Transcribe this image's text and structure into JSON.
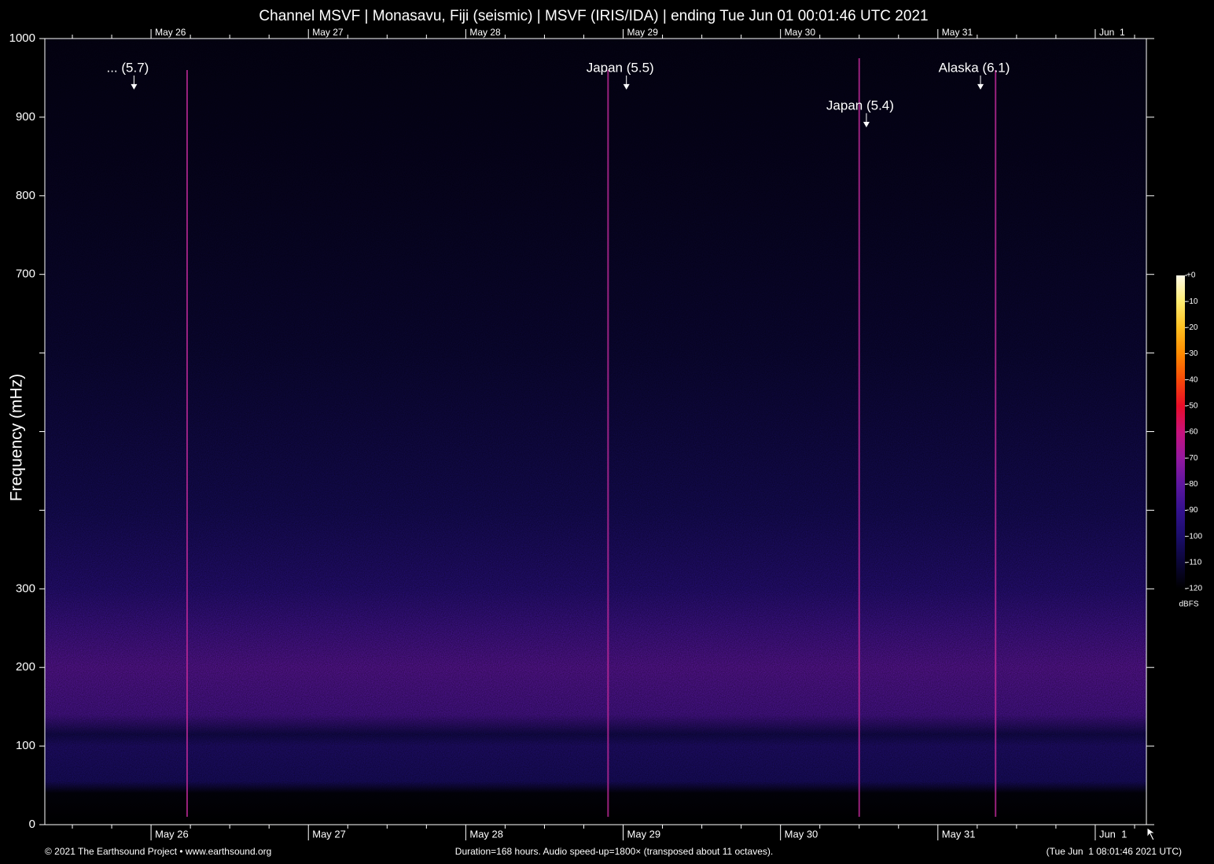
{
  "chart_data": {
    "type": "spectrogram",
    "title": "Channel MSVF | Monasavu, Fiji (seismic) | MSVF (IRIS/IDA) | ending Tue Jun 01 00:01:46 UTC 2021",
    "y_label": "Frequency (mHz)",
    "xlim": [
      0,
      168
    ],
    "xticks": [
      {
        "value": 16.2,
        "label": "May 26"
      },
      {
        "value": 40.2,
        "label": "May 27"
      },
      {
        "value": 64.2,
        "label": "May 28"
      },
      {
        "value": 88.2,
        "label": "May 29"
      },
      {
        "value": 112.2,
        "label": "May 30"
      },
      {
        "value": 136.2,
        "label": "May 31"
      },
      {
        "value": 160.2,
        "label": "Jun  1"
      }
    ],
    "xminorticks": [
      4.2,
      10.2,
      22.2,
      28.2,
      34.2,
      46.2,
      52.2,
      58.2,
      70.2,
      76.2,
      82.2,
      94.2,
      100.2,
      106.2,
      118.2,
      124.2,
      130.2,
      142.2,
      148.2,
      154.2,
      166.2
    ],
    "ylim": [
      0,
      1000
    ],
    "yticks": [
      0,
      100,
      200,
      300,
      700,
      800,
      900,
      1000
    ],
    "yminorticks": [
      400,
      500,
      600
    ],
    "spectrum": {
      "frequencies": [
        0,
        40,
        55,
        100,
        115,
        140,
        200,
        250,
        300,
        400,
        600,
        800,
        1000
      ],
      "levels": [
        -120,
        -118,
        -100,
        -97,
        -104,
        -84,
        -80,
        -86,
        -94,
        -102,
        -109,
        -113,
        -116
      ]
    },
    "events": {
      "color": "#c02a9a",
      "x": [
        21.7,
        85.9,
        124.2,
        145.0
      ],
      "top": [
        960,
        960,
        975,
        960
      ]
    },
    "annotations": [
      {
        "text": "... (5.7)",
        "x": 13.6,
        "y": 936
      },
      {
        "text": "Japan (5.5)",
        "x": 88.7,
        "y": 936
      },
      {
        "text": "Japan (5.4)",
        "x": 125.3,
        "y": 888
      },
      {
        "text": "Alaska (6.1)",
        "x": 142.7,
        "y": 936
      }
    ],
    "colorbar": {
      "unit": "dBFS",
      "clim": [
        -120,
        0
      ],
      "colors": [
        "#000000",
        "#0b0636",
        "#1a0d6a",
        "#33118e",
        "#5e16a0",
        "#9418a0",
        "#c8127c",
        "#e80c28",
        "#f84a08",
        "#ff8a00",
        "#ffc020",
        "#ffec70",
        "#fffbe8"
      ],
      "ticks": [
        {
          "value": 0,
          "label": "+0"
        },
        -10,
        -20,
        -30,
        -40,
        -50,
        -60,
        -70,
        -80,
        -90,
        -100,
        -110,
        -120
      ]
    },
    "footer_left": "© 2021 The Earthsound Project • www.earthsound.org",
    "footer_center": "Duration=168 hours. Audio speed-up=1800× (transposed about 11 octaves).",
    "footer_right": "(Tue Jun  1 08:01:46 2021 UTC)"
  }
}
